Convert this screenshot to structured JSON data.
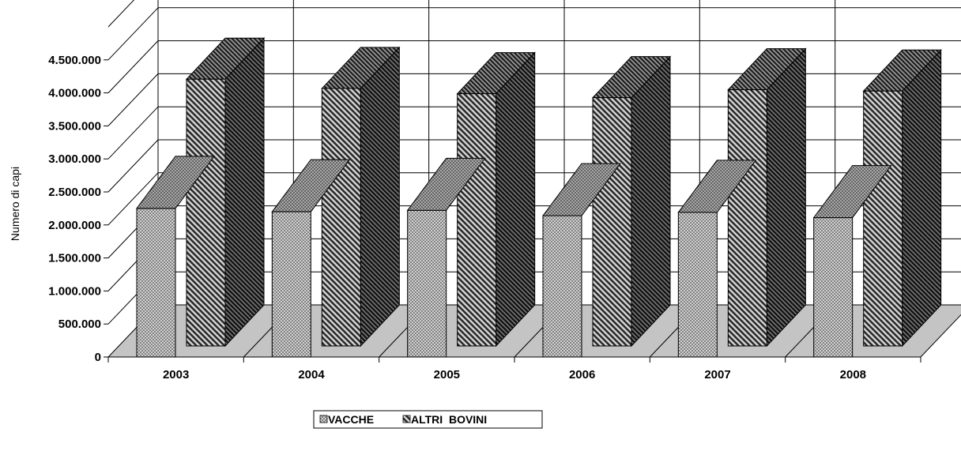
{
  "chart_data": {
    "type": "bar",
    "categories": [
      "2003",
      "2004",
      "2005",
      "2006",
      "2007",
      "2008"
    ],
    "series": [
      {
        "name": "VACCHE",
        "values": [
          2250000,
          2200000,
          2220000,
          2140000,
          2190000,
          2110000
        ]
      },
      {
        "name": "ALTRI  BOVINI",
        "values": [
          4040000,
          3900000,
          3820000,
          3760000,
          3880000,
          3860000
        ]
      }
    ],
    "ylabel": "Numero di capi",
    "ylim": [
      0,
      5000000
    ],
    "yticks": [
      "0",
      "500.000",
      "1.000.000",
      "1.500.000",
      "2.000.000",
      "2.500.000",
      "3.000.000",
      "3.500.000",
      "4.000.000",
      "4.500.000"
    ],
    "grid": true,
    "legend_position": "bottom",
    "three_d": true
  }
}
